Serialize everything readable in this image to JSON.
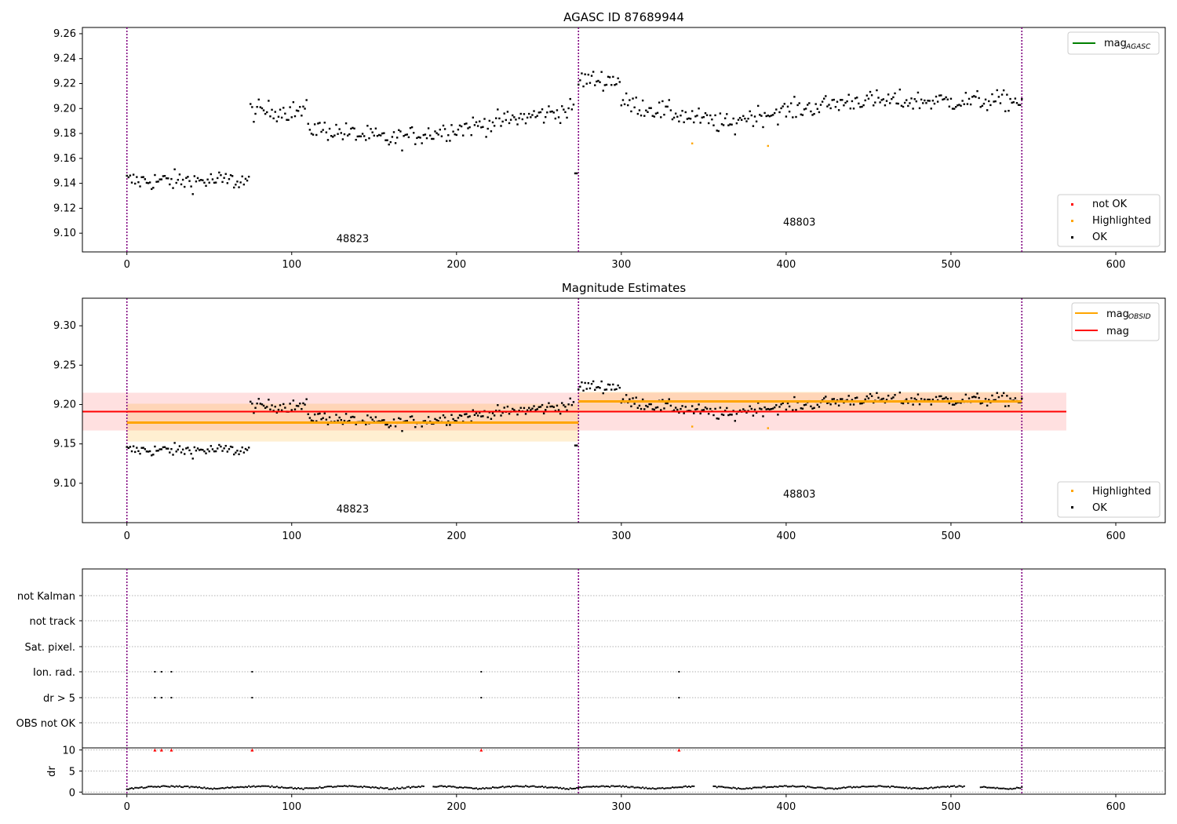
{
  "chart_data": [
    {
      "type": "scatter",
      "title": "AGASC ID 87689944",
      "xlim": [
        -27,
        630
      ],
      "ylim": [
        9.085,
        9.265
      ],
      "xticks": [
        0,
        100,
        200,
        300,
        400,
        500,
        600
      ],
      "yticks": [
        9.1,
        9.12,
        9.14,
        9.16,
        9.18,
        9.2,
        9.22,
        9.24,
        9.26
      ],
      "ytick_labels": [
        "9.10",
        "9.12",
        "9.14",
        "9.16",
        "9.18",
        "9.20",
        "9.22",
        "9.24",
        "9.26"
      ],
      "vlines": [
        0,
        274,
        543
      ],
      "obsid_labels": [
        {
          "text": "48823",
          "x": 137,
          "y": 9.093
        },
        {
          "text": "48803",
          "x": 408,
          "y": 9.106
        }
      ],
      "legend_lines": [
        {
          "label": "mag",
          "sub": "AGASC",
          "color": "#008000"
        }
      ],
      "legend_points": [
        {
          "label": "not OK",
          "color": "#ff0000"
        },
        {
          "label": "Highlighted",
          "color": "#ffa500"
        },
        {
          "label": "OK",
          "color": "#000000"
        }
      ],
      "highlighted": [
        [
          343,
          9.172
        ],
        [
          389,
          9.17
        ]
      ]
    },
    {
      "type": "scatter",
      "title": "Magnitude Estimates",
      "xlim": [
        -27,
        630
      ],
      "ylim": [
        9.05,
        9.335
      ],
      "xticks": [
        0,
        100,
        200,
        300,
        400,
        500,
        600
      ],
      "yticks": [
        9.1,
        9.15,
        9.2,
        9.25,
        9.3
      ],
      "ytick_labels": [
        "9.10",
        "9.15",
        "9.20",
        "9.25",
        "9.30"
      ],
      "vlines": [
        0,
        274,
        543
      ],
      "obsid_labels": [
        {
          "text": "48823",
          "x": 137,
          "y": 9.063
        },
        {
          "text": "48803",
          "x": 408,
          "y": 9.082
        }
      ],
      "mag_line": {
        "value": 9.191,
        "band": [
          9.167,
          9.215
        ],
        "x": [
          -27,
          570
        ],
        "color": "#ff0000"
      },
      "obsid_means": [
        {
          "x": [
            0,
            274
          ],
          "value": 9.177,
          "band": [
            9.153,
            9.201
          ]
        },
        {
          "x": [
            274,
            543
          ],
          "value": 9.204,
          "band": [
            9.192,
            9.216
          ]
        }
      ],
      "legend_lines": [
        {
          "label": "mag",
          "sub": "OBSID",
          "color": "#ffa500"
        },
        {
          "label": "mag",
          "sub": "",
          "color": "#ff0000"
        }
      ],
      "legend_points": [
        {
          "label": "Highlighted",
          "color": "#ffa500"
        },
        {
          "label": "OK",
          "color": "#000000"
        }
      ],
      "highlighted": [
        [
          343,
          9.172
        ],
        [
          389,
          9.17
        ]
      ]
    },
    {
      "type": "scatter",
      "title": "",
      "xlim": [
        -27,
        630
      ],
      "xticks": [
        0,
        100,
        200,
        300,
        400,
        500,
        600
      ],
      "vlines": [
        0,
        274,
        543
      ],
      "flag_labels": [
        "not Kalman",
        "not track",
        "Sat. pixel.",
        "Ion. rad.",
        "dr > 5",
        "OBS not OK"
      ],
      "flag_points": {
        "Ion. rad.": [
          17,
          21,
          27,
          76,
          215,
          335
        ],
        "dr > 5": [
          17,
          21,
          27,
          76,
          215,
          335
        ]
      },
      "dr_axis": {
        "ylabel": "dr",
        "yticks": [
          0,
          5,
          10
        ],
        "ylim": [
          -0.5,
          10.5
        ]
      },
      "dr_clipped": [
        17,
        21,
        27,
        76,
        215,
        335
      ]
    }
  ],
  "colors": {
    "ok": "#000000",
    "highlighted": "#ffa500",
    "not_ok": "#ff0000",
    "vline": "#800080",
    "agasc": "#008000"
  }
}
